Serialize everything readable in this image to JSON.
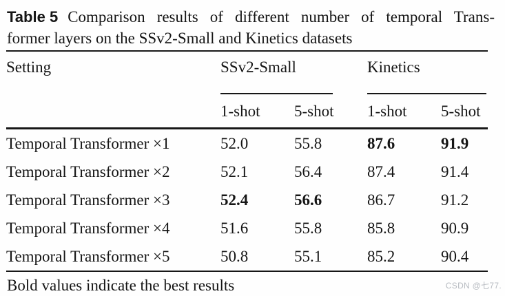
{
  "title": {
    "label": "Table 5",
    "caption_line1": "Comparison results of different number of temporal Trans-",
    "caption_line2": "former layers on the SSv2-Small and Kinetics datasets"
  },
  "table": {
    "setting_header": "Setting",
    "groups": [
      {
        "label": "SSv2-Small"
      },
      {
        "label": "Kinetics"
      }
    ],
    "subheaders": [
      "1-shot",
      "5-shot",
      "1-shot",
      "5-shot"
    ],
    "rows": [
      {
        "setting": "Temporal Transformer ×1",
        "values": [
          "52.0",
          "55.8",
          "87.6",
          "91.9"
        ]
      },
      {
        "setting": "Temporal Transformer ×2",
        "values": [
          "52.1",
          "56.4",
          "87.4",
          "91.4"
        ]
      },
      {
        "setting": "Temporal Transformer ×3",
        "values": [
          "52.4",
          "56.6",
          "86.7",
          "91.2"
        ]
      },
      {
        "setting": "Temporal Transformer ×4",
        "values": [
          "51.6",
          "55.8",
          "85.8",
          "90.9"
        ]
      },
      {
        "setting": "Temporal Transformer ×5",
        "values": [
          "50.8",
          "55.1",
          "85.2",
          "90.4"
        ]
      }
    ],
    "bold_note": "Bold marks best results: row 1 Kinetics columns, row 3 SSv2-Small columns"
  },
  "footnote": "Bold values indicate the best results",
  "watermark": "CSDN @七77.",
  "colors": {
    "text": "#151515",
    "rule": "#171717",
    "watermark": "#b7bbc1",
    "background": "#fefefe"
  }
}
